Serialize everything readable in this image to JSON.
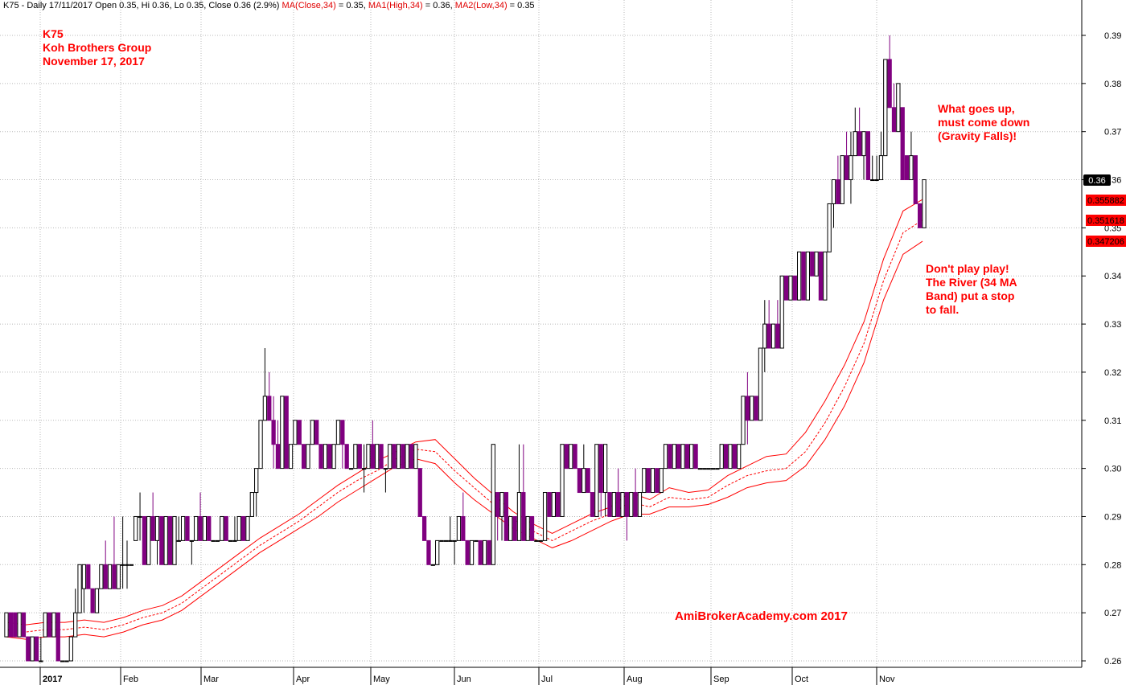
{
  "header": {
    "prefix": "K75 - Daily 17/11/2017 Open 0.35, Hi 0.36, Lo 0.35, Close 0.36 (2.9%)",
    "ma_label": "MA(Close,34)",
    "ma_value": " = 0.35,",
    "ma1_label": "MA1(High,34)",
    "ma1_value": " = 0.36,",
    "ma2_label": "MA2(Low,34)",
    "ma2_value": " = 0.35"
  },
  "title_block": {
    "line1": "K75",
    "line2": "Koh Brothers Group",
    "line3": "November 17, 2017"
  },
  "annotations": {
    "top_line1": "What goes up,",
    "top_line2": "must come down",
    "top_line3": "(Gravity Falls)!",
    "mid_line1": "Don't play play!",
    "mid_line2": "The River (34 MA",
    "mid_line3": "Band) put a stop",
    "mid_line4": "to fall."
  },
  "watermark": "AmiBrokerAcademy.com  2017",
  "price_tags": {
    "close": "0.36",
    "ma_high": "0.355882",
    "ma_close": "0.351618",
    "ma_low": "0.347206"
  },
  "colors": {
    "up_candle": "#ffffff",
    "down_candle": "#800080",
    "ma_band": "#ff0000",
    "annotation": "#ff0000",
    "grid": "#b0b0b0"
  },
  "chart_data": {
    "type": "candlestick",
    "ylim": [
      0.255,
      0.395
    ],
    "yticks": [
      "0.26",
      "0.27",
      "0.28",
      "0.29",
      "0.30",
      "0.31",
      "0.32",
      "0.33",
      "0.34",
      "0.35",
      "0.36",
      "0.37",
      "0.38",
      "0.39"
    ],
    "x_labels": [
      "2017",
      "Feb",
      "Mar",
      "Apr",
      "May",
      "Jun",
      "Jul",
      "Aug",
      "Sep",
      "Oct",
      "Nov"
    ],
    "ohlc": [
      [
        0.265,
        0.27,
        0.265,
        0.27
      ],
      [
        0.27,
        0.27,
        0.265,
        0.265
      ],
      [
        0.27,
        0.27,
        0.265,
        0.265
      ],
      [
        0.265,
        0.27,
        0.265,
        0.27
      ],
      [
        0.27,
        0.27,
        0.265,
        0.265
      ],
      [
        0.265,
        0.265,
        0.26,
        0.26
      ],
      [
        0.26,
        0.265,
        0.26,
        0.265
      ],
      [
        0.265,
        0.265,
        0.26,
        0.26
      ],
      [
        0.26,
        0.265,
        0.26,
        0.26
      ],
      [
        0.265,
        0.27,
        0.265,
        0.27
      ],
      [
        0.27,
        0.27,
        0.265,
        0.265
      ],
      [
        0.265,
        0.27,
        0.265,
        0.27
      ],
      [
        0.27,
        0.27,
        0.26,
        0.26
      ],
      [
        0.26,
        0.26,
        0.26,
        0.26
      ],
      [
        0.26,
        0.26,
        0.26,
        0.26
      ],
      [
        0.26,
        0.265,
        0.26,
        0.265
      ],
      [
        0.265,
        0.275,
        0.265,
        0.27
      ],
      [
        0.27,
        0.28,
        0.27,
        0.28
      ],
      [
        0.275,
        0.28,
        0.27,
        0.28
      ],
      [
        0.28,
        0.28,
        0.275,
        0.275
      ],
      [
        0.275,
        0.275,
        0.27,
        0.27
      ],
      [
        0.27,
        0.275,
        0.27,
        0.275
      ],
      [
        0.275,
        0.28,
        0.275,
        0.28
      ],
      [
        0.28,
        0.285,
        0.275,
        0.275
      ],
      [
        0.275,
        0.28,
        0.275,
        0.28
      ],
      [
        0.28,
        0.29,
        0.275,
        0.275
      ],
      [
        0.275,
        0.28,
        0.275,
        0.28
      ],
      [
        0.28,
        0.29,
        0.275,
        0.28
      ],
      [
        0.28,
        0.285,
        0.275,
        0.28
      ],
      [
        0.28,
        0.28,
        0.28,
        0.28
      ],
      [
        0.285,
        0.29,
        0.285,
        0.29
      ],
      [
        0.29,
        0.295,
        0.285,
        0.29
      ],
      [
        0.29,
        0.29,
        0.28,
        0.28
      ],
      [
        0.28,
        0.29,
        0.28,
        0.29
      ],
      [
        0.29,
        0.295,
        0.285,
        0.285
      ],
      [
        0.285,
        0.29,
        0.28,
        0.29
      ],
      [
        0.29,
        0.29,
        0.28,
        0.28
      ],
      [
        0.28,
        0.29,
        0.28,
        0.29
      ],
      [
        0.29,
        0.29,
        0.28,
        0.28
      ],
      [
        0.28,
        0.29,
        0.28,
        0.29
      ],
      [
        0.285,
        0.29,
        0.285,
        0.285
      ],
      [
        0.285,
        0.29,
        0.285,
        0.29
      ],
      [
        0.29,
        0.29,
        0.285,
        0.285
      ],
      [
        0.285,
        0.285,
        0.28,
        0.285
      ],
      [
        0.285,
        0.29,
        0.285,
        0.29
      ],
      [
        0.29,
        0.295,
        0.285,
        0.285
      ],
      [
        0.285,
        0.29,
        0.285,
        0.29
      ],
      [
        0.29,
        0.29,
        0.285,
        0.285
      ],
      [
        0.285,
        0.285,
        0.285,
        0.285
      ],
      [
        0.285,
        0.285,
        0.285,
        0.285
      ],
      [
        0.285,
        0.29,
        0.285,
        0.29
      ],
      [
        0.29,
        0.29,
        0.285,
        0.285
      ],
      [
        0.285,
        0.285,
        0.285,
        0.285
      ],
      [
        0.285,
        0.29,
        0.285,
        0.285
      ],
      [
        0.285,
        0.29,
        0.285,
        0.29
      ],
      [
        0.29,
        0.29,
        0.285,
        0.285
      ],
      [
        0.285,
        0.29,
        0.285,
        0.29
      ],
      [
        0.29,
        0.295,
        0.29,
        0.295
      ],
      [
        0.295,
        0.3,
        0.29,
        0.3
      ],
      [
        0.3,
        0.31,
        0.3,
        0.31
      ],
      [
        0.31,
        0.325,
        0.31,
        0.315
      ],
      [
        0.315,
        0.32,
        0.31,
        0.31
      ],
      [
        0.31,
        0.315,
        0.3,
        0.305
      ],
      [
        0.305,
        0.31,
        0.3,
        0.3
      ],
      [
        0.3,
        0.315,
        0.3,
        0.315
      ],
      [
        0.315,
        0.315,
        0.3,
        0.3
      ],
      [
        0.3,
        0.305,
        0.3,
        0.305
      ],
      [
        0.305,
        0.31,
        0.305,
        0.31
      ],
      [
        0.31,
        0.31,
        0.305,
        0.305
      ],
      [
        0.305,
        0.305,
        0.3,
        0.3
      ],
      [
        0.3,
        0.305,
        0.3,
        0.305
      ],
      [
        0.305,
        0.31,
        0.305,
        0.31
      ],
      [
        0.31,
        0.31,
        0.305,
        0.305
      ],
      [
        0.305,
        0.305,
        0.3,
        0.3
      ],
      [
        0.3,
        0.305,
        0.3,
        0.305
      ],
      [
        0.305,
        0.305,
        0.3,
        0.3
      ],
      [
        0.3,
        0.305,
        0.3,
        0.305
      ],
      [
        0.305,
        0.31,
        0.305,
        0.31
      ],
      [
        0.31,
        0.31,
        0.3,
        0.305
      ],
      [
        0.305,
        0.305,
        0.3,
        0.3
      ],
      [
        0.3,
        0.3,
        0.3,
        0.3
      ],
      [
        0.3,
        0.305,
        0.3,
        0.305
      ],
      [
        0.305,
        0.305,
        0.3,
        0.3
      ],
      [
        0.3,
        0.305,
        0.295,
        0.3
      ],
      [
        0.3,
        0.305,
        0.3,
        0.305
      ],
      [
        0.305,
        0.31,
        0.3,
        0.3
      ],
      [
        0.3,
        0.305,
        0.3,
        0.305
      ],
      [
        0.305,
        0.305,
        0.3,
        0.3
      ],
      [
        0.3,
        0.3,
        0.295,
        0.3
      ],
      [
        0.3,
        0.305,
        0.3,
        0.305
      ],
      [
        0.305,
        0.305,
        0.3,
        0.3
      ],
      [
        0.3,
        0.305,
        0.3,
        0.305
      ],
      [
        0.305,
        0.305,
        0.3,
        0.3
      ],
      [
        0.3,
        0.305,
        0.3,
        0.305
      ],
      [
        0.305,
        0.305,
        0.3,
        0.3
      ],
      [
        0.3,
        0.305,
        0.3,
        0.305
      ],
      [
        0.3,
        0.3,
        0.29,
        0.29
      ],
      [
        0.29,
        0.29,
        0.285,
        0.285
      ],
      [
        0.285,
        0.285,
        0.28,
        0.28
      ],
      [
        0.28,
        0.28,
        0.28,
        0.28
      ],
      [
        0.28,
        0.285,
        0.28,
        0.285
      ],
      [
        0.285,
        0.285,
        0.285,
        0.285
      ],
      [
        0.285,
        0.285,
        0.285,
        0.285
      ],
      [
        0.285,
        0.29,
        0.285,
        0.285
      ],
      [
        0.285,
        0.285,
        0.28,
        0.285
      ],
      [
        0.285,
        0.29,
        0.285,
        0.29
      ],
      [
        0.29,
        0.295,
        0.285,
        0.285
      ],
      [
        0.285,
        0.285,
        0.28,
        0.28
      ],
      [
        0.28,
        0.285,
        0.28,
        0.285
      ],
      [
        0.285,
        0.285,
        0.285,
        0.285
      ],
      [
        0.285,
        0.285,
        0.28,
        0.28
      ],
      [
        0.28,
        0.285,
        0.28,
        0.285
      ],
      [
        0.285,
        0.285,
        0.28,
        0.28
      ],
      [
        0.28,
        0.305,
        0.28,
        0.305
      ],
      [
        0.295,
        0.295,
        0.285,
        0.29
      ],
      [
        0.29,
        0.295,
        0.285,
        0.295
      ],
      [
        0.295,
        0.295,
        0.285,
        0.285
      ],
      [
        0.285,
        0.29,
        0.285,
        0.29
      ],
      [
        0.29,
        0.29,
        0.285,
        0.285
      ],
      [
        0.285,
        0.305,
        0.285,
        0.295
      ],
      [
        0.295,
        0.305,
        0.285,
        0.285
      ],
      [
        0.285,
        0.29,
        0.285,
        0.29
      ],
      [
        0.29,
        0.29,
        0.285,
        0.285
      ],
      [
        0.285,
        0.285,
        0.285,
        0.285
      ],
      [
        0.285,
        0.285,
        0.285,
        0.285
      ],
      [
        0.285,
        0.295,
        0.285,
        0.295
      ],
      [
        0.295,
        0.295,
        0.29,
        0.29
      ],
      [
        0.29,
        0.295,
        0.29,
        0.295
      ],
      [
        0.295,
        0.295,
        0.29,
        0.29
      ],
      [
        0.29,
        0.305,
        0.29,
        0.305
      ],
      [
        0.305,
        0.305,
        0.3,
        0.3
      ],
      [
        0.3,
        0.305,
        0.3,
        0.305
      ],
      [
        0.305,
        0.305,
        0.3,
        0.3
      ],
      [
        0.3,
        0.3,
        0.295,
        0.295
      ],
      [
        0.295,
        0.305,
        0.295,
        0.3
      ],
      [
        0.3,
        0.3,
        0.295,
        0.295
      ],
      [
        0.295,
        0.295,
        0.29,
        0.29
      ],
      [
        0.29,
        0.305,
        0.29,
        0.305
      ],
      [
        0.305,
        0.305,
        0.29,
        0.295
      ],
      [
        0.295,
        0.305,
        0.29,
        0.305
      ],
      [
        0.295,
        0.295,
        0.29,
        0.29
      ],
      [
        0.29,
        0.295,
        0.29,
        0.295
      ],
      [
        0.295,
        0.3,
        0.29,
        0.29
      ],
      [
        0.29,
        0.295,
        0.29,
        0.295
      ],
      [
        0.295,
        0.295,
        0.285,
        0.29
      ],
      [
        0.29,
        0.295,
        0.29,
        0.295
      ],
      [
        0.295,
        0.3,
        0.29,
        0.29
      ],
      [
        0.29,
        0.295,
        0.29,
        0.295
      ],
      [
        0.295,
        0.3,
        0.295,
        0.3
      ],
      [
        0.3,
        0.3,
        0.295,
        0.295
      ],
      [
        0.295,
        0.3,
        0.295,
        0.3
      ],
      [
        0.3,
        0.3,
        0.295,
        0.295
      ],
      [
        0.295,
        0.3,
        0.295,
        0.3
      ],
      [
        0.3,
        0.305,
        0.3,
        0.305
      ],
      [
        0.305,
        0.305,
        0.3,
        0.3
      ],
      [
        0.3,
        0.305,
        0.3,
        0.305
      ],
      [
        0.305,
        0.305,
        0.3,
        0.3
      ],
      [
        0.3,
        0.305,
        0.3,
        0.305
      ],
      [
        0.305,
        0.305,
        0.3,
        0.3
      ],
      [
        0.3,
        0.305,
        0.3,
        0.305
      ],
      [
        0.305,
        0.305,
        0.3,
        0.3
      ],
      [
        0.3,
        0.3,
        0.3,
        0.3
      ],
      [
        0.3,
        0.3,
        0.3,
        0.3
      ],
      [
        0.3,
        0.3,
        0.3,
        0.3
      ],
      [
        0.3,
        0.3,
        0.3,
        0.3
      ],
      [
        0.3,
        0.3,
        0.3,
        0.3
      ],
      [
        0.3,
        0.305,
        0.3,
        0.305
      ],
      [
        0.305,
        0.305,
        0.3,
        0.3
      ],
      [
        0.3,
        0.305,
        0.3,
        0.305
      ],
      [
        0.305,
        0.305,
        0.3,
        0.3
      ],
      [
        0.3,
        0.305,
        0.3,
        0.305
      ],
      [
        0.305,
        0.315,
        0.305,
        0.315
      ],
      [
        0.315,
        0.32,
        0.305,
        0.31
      ],
      [
        0.31,
        0.315,
        0.31,
        0.315
      ],
      [
        0.315,
        0.315,
        0.31,
        0.31
      ],
      [
        0.31,
        0.325,
        0.31,
        0.325
      ],
      [
        0.325,
        0.335,
        0.32,
        0.33
      ],
      [
        0.33,
        0.335,
        0.325,
        0.325
      ],
      [
        0.325,
        0.33,
        0.325,
        0.33
      ],
      [
        0.33,
        0.335,
        0.325,
        0.325
      ],
      [
        0.325,
        0.34,
        0.325,
        0.34
      ],
      [
        0.34,
        0.34,
        0.335,
        0.335
      ],
      [
        0.335,
        0.34,
        0.335,
        0.34
      ],
      [
        0.34,
        0.34,
        0.335,
        0.335
      ],
      [
        0.335,
        0.345,
        0.335,
        0.345
      ],
      [
        0.345,
        0.345,
        0.335,
        0.335
      ],
      [
        0.335,
        0.345,
        0.335,
        0.345
      ],
      [
        0.345,
        0.345,
        0.34,
        0.34
      ],
      [
        0.34,
        0.345,
        0.34,
        0.345
      ],
      [
        0.345,
        0.345,
        0.335,
        0.335
      ],
      [
        0.335,
        0.345,
        0.335,
        0.345
      ],
      [
        0.345,
        0.355,
        0.345,
        0.355
      ],
      [
        0.355,
        0.36,
        0.35,
        0.36
      ],
      [
        0.36,
        0.365,
        0.355,
        0.355
      ],
      [
        0.355,
        0.365,
        0.355,
        0.365
      ],
      [
        0.365,
        0.37,
        0.36,
        0.36
      ],
      [
        0.36,
        0.37,
        0.355,
        0.365
      ],
      [
        0.365,
        0.375,
        0.365,
        0.37
      ],
      [
        0.37,
        0.375,
        0.365,
        0.365
      ],
      [
        0.365,
        0.37,
        0.36,
        0.37
      ],
      [
        0.37,
        0.37,
        0.36,
        0.36
      ],
      [
        0.36,
        0.365,
        0.36,
        0.36
      ],
      [
        0.36,
        0.365,
        0.36,
        0.36
      ],
      [
        0.36,
        0.37,
        0.36,
        0.365
      ],
      [
        0.365,
        0.385,
        0.365,
        0.385
      ],
      [
        0.385,
        0.39,
        0.375,
        0.375
      ],
      [
        0.375,
        0.38,
        0.37,
        0.37
      ],
      [
        0.37,
        0.38,
        0.37,
        0.38
      ],
      [
        0.375,
        0.375,
        0.36,
        0.36
      ],
      [
        0.365,
        0.365,
        0.36,
        0.36
      ],
      [
        0.36,
        0.37,
        0.36,
        0.365
      ],
      [
        0.365,
        0.365,
        0.355,
        0.355
      ],
      [
        0.355,
        0.355,
        0.35,
        0.35
      ],
      [
        0.35,
        0.36,
        0.35,
        0.36
      ]
    ],
    "ma_high": [
      0.268,
      0.2675,
      0.268,
      0.268,
      0.2685,
      0.268,
      0.269,
      0.2705,
      0.2715,
      0.2735,
      0.2765,
      0.2795,
      0.2825,
      0.2855,
      0.288,
      0.2905,
      0.2935,
      0.2965,
      0.299,
      0.3015,
      0.3035,
      0.3055,
      0.306,
      0.302,
      0.298,
      0.2945,
      0.291,
      0.2885,
      0.2865,
      0.2885,
      0.2905,
      0.292,
      0.295,
      0.2935,
      0.296,
      0.295,
      0.2955,
      0.2985,
      0.3005,
      0.3025,
      0.303,
      0.3075,
      0.314,
      0.3215,
      0.3305,
      0.3435,
      0.3535,
      0.3559
    ],
    "ma_close": [
      0.2665,
      0.266,
      0.2665,
      0.2665,
      0.267,
      0.2665,
      0.2675,
      0.269,
      0.27,
      0.272,
      0.275,
      0.278,
      0.281,
      0.284,
      0.2865,
      0.289,
      0.292,
      0.295,
      0.2975,
      0.2995,
      0.302,
      0.304,
      0.3035,
      0.2995,
      0.296,
      0.2925,
      0.2895,
      0.287,
      0.285,
      0.287,
      0.289,
      0.2905,
      0.293,
      0.292,
      0.294,
      0.2935,
      0.294,
      0.2965,
      0.2985,
      0.2995,
      0.3,
      0.3035,
      0.3095,
      0.317,
      0.326,
      0.339,
      0.349,
      0.3516
    ],
    "ma_low": [
      0.265,
      0.2645,
      0.265,
      0.265,
      0.2655,
      0.265,
      0.266,
      0.2675,
      0.2685,
      0.2705,
      0.2735,
      0.2765,
      0.2795,
      0.2825,
      0.285,
      0.2875,
      0.29,
      0.293,
      0.2955,
      0.298,
      0.3005,
      0.302,
      0.301,
      0.297,
      0.2935,
      0.2905,
      0.2875,
      0.2855,
      0.2835,
      0.285,
      0.287,
      0.289,
      0.2905,
      0.2905,
      0.292,
      0.292,
      0.2925,
      0.294,
      0.296,
      0.297,
      0.2975,
      0.3005,
      0.306,
      0.313,
      0.322,
      0.335,
      0.3445,
      0.3472
    ]
  }
}
